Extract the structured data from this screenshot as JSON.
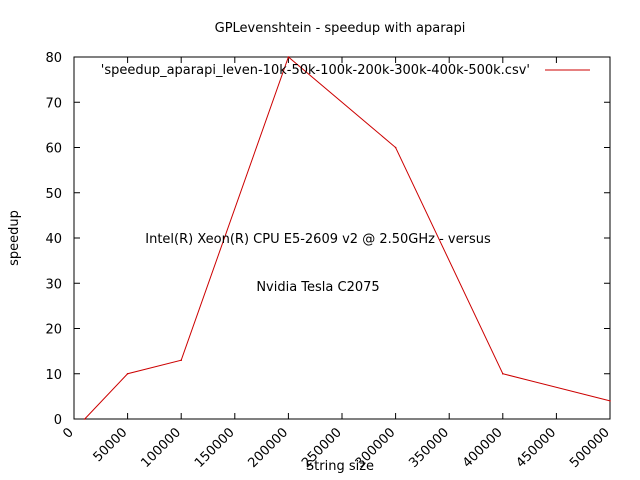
{
  "chart_data": {
    "type": "line",
    "title": "GPLevenshtein - speedup with aparapi",
    "xlabel": "String size",
    "ylabel": "speedup",
    "xlim": [
      0,
      500000
    ],
    "ylim": [
      0,
      80
    ],
    "x_ticks": [
      "0",
      "50000",
      "100000",
      "150000",
      "200000",
      "250000",
      "300000",
      "350000",
      "400000",
      "450000",
      "500000"
    ],
    "y_ticks": [
      "0",
      "10",
      "20",
      "30",
      "40",
      "50",
      "60",
      "70",
      "80"
    ],
    "grid": false,
    "legend_position": "top-right",
    "series": [
      {
        "name": "'speedup_aparapi_leven-10k-50k-100k-200k-300k-400k-500k.csv'",
        "color": "#cc0000",
        "x": [
          10000,
          50000,
          100000,
          200000,
          300000,
          400000,
          500000
        ],
        "y": [
          0,
          10,
          13,
          80,
          60,
          10,
          4
        ]
      }
    ],
    "annotations": [
      "Intel(R) Xeon(R) CPU E5-2609 v2 @ 2.50GHz - versus",
      "Nvidia Tesla C2075"
    ]
  }
}
